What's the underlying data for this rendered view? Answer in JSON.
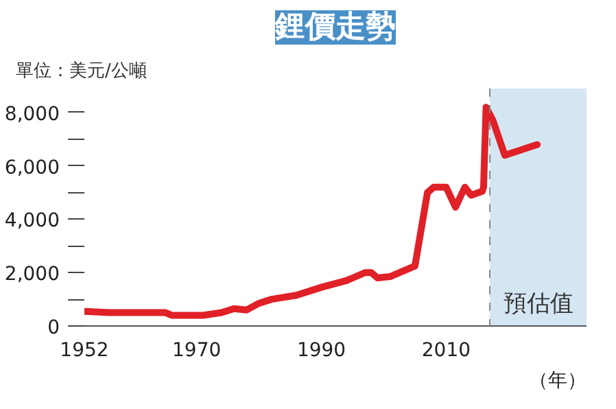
{
  "chart_data": {
    "type": "line",
    "title": "鋰價走勢",
    "ylabel": "單位：美元/公噸",
    "xlabel": "（年）",
    "x": [
      1952,
      1956,
      1965,
      1966,
      1971,
      1974,
      1976,
      1978,
      1980,
      1982,
      1986,
      1990,
      1994,
      1997,
      1998,
      1999,
      2001,
      2003,
      2005,
      2007,
      2008,
      2010,
      2011.5,
      2013,
      2014,
      2015.8,
      2016,
      2016.4,
      2017.5,
      2019.4,
      2024.6
    ],
    "series": [
      {
        "color": "#e02127",
        "values": [
          550,
          500,
          500,
          400,
          400,
          500,
          650,
          600,
          850,
          1000,
          1150,
          1450,
          1700,
          2000,
          2000,
          1800,
          1850,
          2050,
          2250,
          5000,
          5200,
          5200,
          4450,
          5200,
          4900,
          5050,
          5200,
          8200,
          7700,
          6400,
          6800
        ]
      }
    ],
    "xlim": [
      1952,
      2032.5
    ],
    "xticks": [
      1952,
      1970,
      1990,
      2010
    ],
    "ylim": [
      0,
      8900
    ],
    "yticks": [
      0,
      {
        "value": 1000,
        "label": null
      },
      {
        "value": 2000,
        "label": "2,000"
      },
      {
        "value": 3000,
        "label": null
      },
      {
        "value": 4000,
        "label": "4,000"
      },
      {
        "value": 5000,
        "label": null
      },
      {
        "value": 6000,
        "label": "6,000"
      },
      {
        "value": 7000,
        "label": null
      },
      {
        "value": 8000,
        "label": "8,000"
      }
    ],
    "bands": [
      {
        "axis": "x",
        "from": 2017,
        "to": 2032.5,
        "label": "預估值",
        "color": "#d5e6f3"
      }
    ],
    "ref_lines": [
      {
        "axis": "x",
        "value": 2017,
        "color": "#888888",
        "line_style": "dashed"
      }
    ],
    "grid": false,
    "marker": "none",
    "line_style": "solid"
  }
}
